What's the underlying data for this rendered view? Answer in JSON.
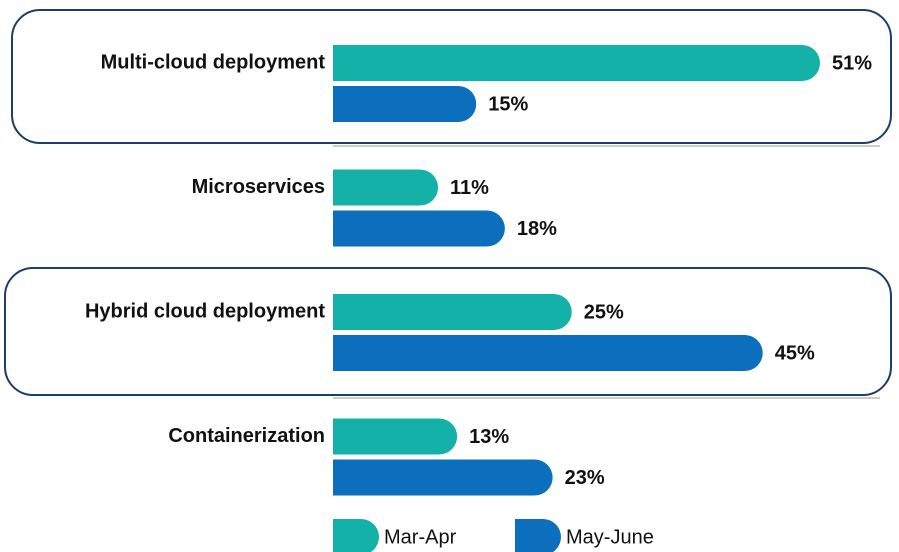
{
  "chart_data": {
    "type": "bar",
    "orientation": "horizontal",
    "categories": [
      "Multi-cloud deployment",
      "Microservices",
      "Hybrid cloud deployment",
      "Containerization"
    ],
    "series": [
      {
        "name": "Mar-Apr",
        "color": "#14b1a8",
        "values": [
          51,
          11,
          25,
          13
        ],
        "value_labels": [
          "51%",
          "11%",
          "25%",
          "13%"
        ]
      },
      {
        "name": "May-June",
        "color": "#0b6fbd",
        "values": [
          15,
          18,
          45,
          23
        ],
        "value_labels": [
          "15%",
          "18%",
          "45%",
          "23%"
        ]
      }
    ],
    "legend": "bottom"
  }
}
